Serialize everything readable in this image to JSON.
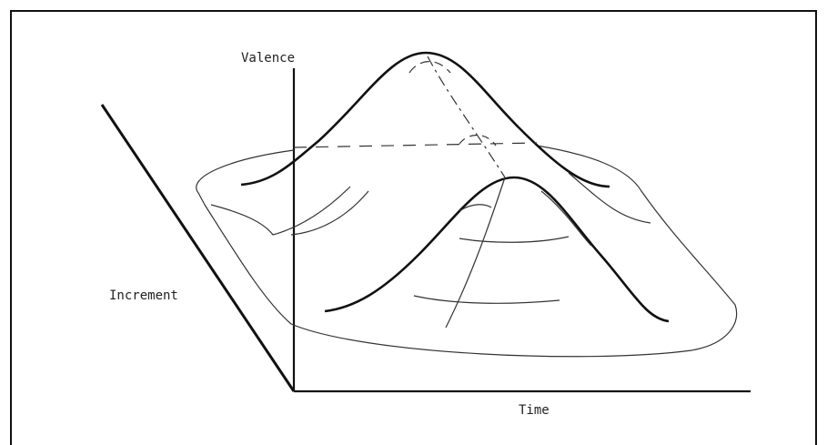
{
  "labels": {
    "y_axis": "Valence",
    "depth_axis": "Increment",
    "x_axis": "Time"
  }
}
